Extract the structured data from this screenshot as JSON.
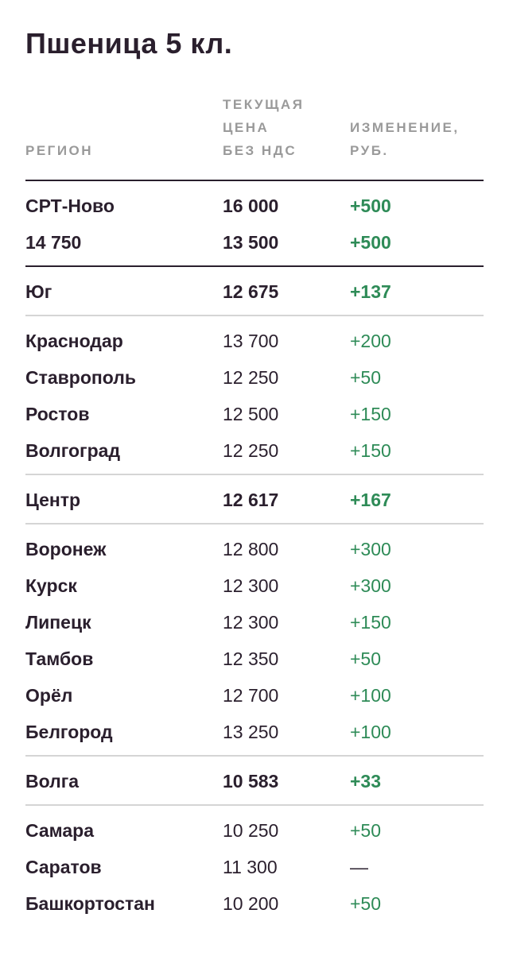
{
  "title": "Пшеница 5 кл.",
  "columns": {
    "region": "РЕГИОН",
    "price": "ТЕКУЩАЯ\nЦЕНА\nБЕЗ НДС",
    "change": "ИЗМЕНЕНИЕ,\nРУБ."
  },
  "colors": {
    "positive": "#2e8b57",
    "text": "#2a1f2d",
    "header": "#9a9a9a"
  },
  "rows": [
    {
      "name": "СРТ-Ново",
      "price": "16 000",
      "change": "+500",
      "bold": true
    },
    {
      "name": "14 750",
      "price": "13 500",
      "change": "+500",
      "bold": true
    },
    {
      "name": "Юг",
      "price": "12 675",
      "change": "+137",
      "bold": true
    },
    {
      "name": "Краснодар",
      "price": "13 700",
      "change": "+200",
      "bold": false
    },
    {
      "name": "Ставрополь",
      "price": "12 250",
      "change": "+50",
      "bold": false
    },
    {
      "name": "Ростов",
      "price": "12 500",
      "change": "+150",
      "bold": false
    },
    {
      "name": "Волгоград",
      "price": "12 250",
      "change": "+150",
      "bold": false
    },
    {
      "name": "Центр",
      "price": "12 617",
      "change": "+167",
      "bold": true
    },
    {
      "name": "Воронеж",
      "price": "12 800",
      "change": "+300",
      "bold": false
    },
    {
      "name": "Курск",
      "price": "12 300",
      "change": "+300",
      "bold": false
    },
    {
      "name": "Липецк",
      "price": "12 300",
      "change": "+150",
      "bold": false
    },
    {
      "name": "Тамбов",
      "price": "12 350",
      "change": "+50",
      "bold": false
    },
    {
      "name": "Орёл",
      "price": "12 700",
      "change": "+100",
      "bold": false
    },
    {
      "name": "Белгород",
      "price": "13 250",
      "change": "+100",
      "bold": false
    },
    {
      "name": "Волга",
      "price": "10 583",
      "change": "+33",
      "bold": true
    },
    {
      "name": "Самара",
      "price": "10 250",
      "change": "+50",
      "bold": false
    },
    {
      "name": "Саратов",
      "price": "11 300",
      "change": "—",
      "bold": false
    },
    {
      "name": "Башкортостан",
      "price": "10 200",
      "change": "+50",
      "bold": false
    }
  ]
}
